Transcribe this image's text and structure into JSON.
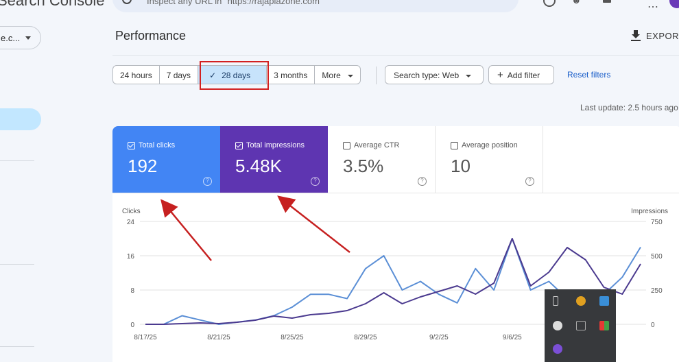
{
  "app": {
    "title": "Search Console"
  },
  "search": {
    "text": "Inspect any URL in \"https://rajaplazone.com\""
  },
  "sidebar": {
    "property_label": "e.c..."
  },
  "header": {
    "title": "Performance",
    "export_label": "EXPORT"
  },
  "filters": {
    "date_ranges": [
      {
        "label": "24 hours",
        "selected": false
      },
      {
        "label": "7 days",
        "selected": false
      },
      {
        "label": "28 days",
        "selected": true
      },
      {
        "label": "3 months",
        "selected": false
      },
      {
        "label": "More",
        "selected": false
      }
    ],
    "search_type": "Search type: Web",
    "add_filter": "Add filter",
    "reset": "Reset filters",
    "last_update": "Last update: 2.5 hours ago"
  },
  "metrics": [
    {
      "label": "Total clicks",
      "value": "192",
      "checked": true,
      "color": "#4285f4"
    },
    {
      "label": "Total impressions",
      "value": "5.48K",
      "checked": true,
      "color": "#5e35b1"
    },
    {
      "label": "Average CTR",
      "value": "3.5%",
      "checked": false
    },
    {
      "label": "Average position",
      "value": "10",
      "checked": false
    }
  ],
  "chart_data": {
    "type": "line",
    "x": [
      "8/17/25",
      "8/18/25",
      "8/19/25",
      "8/20/25",
      "8/21/25",
      "8/22/25",
      "8/23/25",
      "8/24/25",
      "8/25/25",
      "8/26/25",
      "8/27/25",
      "8/28/25",
      "8/29/25",
      "8/30/25",
      "8/31/25",
      "9/1/25",
      "9/2/25",
      "9/3/25",
      "9/4/25",
      "9/5/25",
      "9/6/25",
      "9/7/25",
      "9/8/25",
      "9/9/25",
      "9/10/25",
      "9/11/25",
      "9/12/25",
      "9/13/25"
    ],
    "x_tick_labels": [
      "8/17/25",
      "8/21/25",
      "8/25/25",
      "8/29/25",
      "9/2/25",
      "9/6/25"
    ],
    "y_left_label": "Clicks",
    "y_left_ticks": [
      0,
      8,
      16,
      24
    ],
    "y_left_lim": [
      0,
      24
    ],
    "y_right_label": "Impressions",
    "y_right_ticks": [
      0,
      250,
      500,
      750
    ],
    "y_right_lim": [
      0,
      750
    ],
    "series": [
      {
        "name": "Clicks",
        "axis": "left",
        "color": "#5b8fd6",
        "values": [
          0,
          0,
          2,
          1,
          0,
          0.5,
          1,
          2,
          4,
          7,
          7,
          6,
          13,
          16,
          8,
          10,
          7,
          5,
          13,
          8,
          20,
          8,
          10,
          6,
          4,
          7,
          11,
          18
        ]
      },
      {
        "name": "Impressions",
        "axis": "right",
        "color": "#4b3a8f",
        "values": [
          0,
          0,
          5,
          10,
          5,
          15,
          30,
          60,
          45,
          70,
          80,
          100,
          150,
          230,
          150,
          200,
          240,
          280,
          220,
          300,
          625,
          280,
          380,
          560,
          470,
          270,
          220,
          440
        ]
      }
    ]
  }
}
